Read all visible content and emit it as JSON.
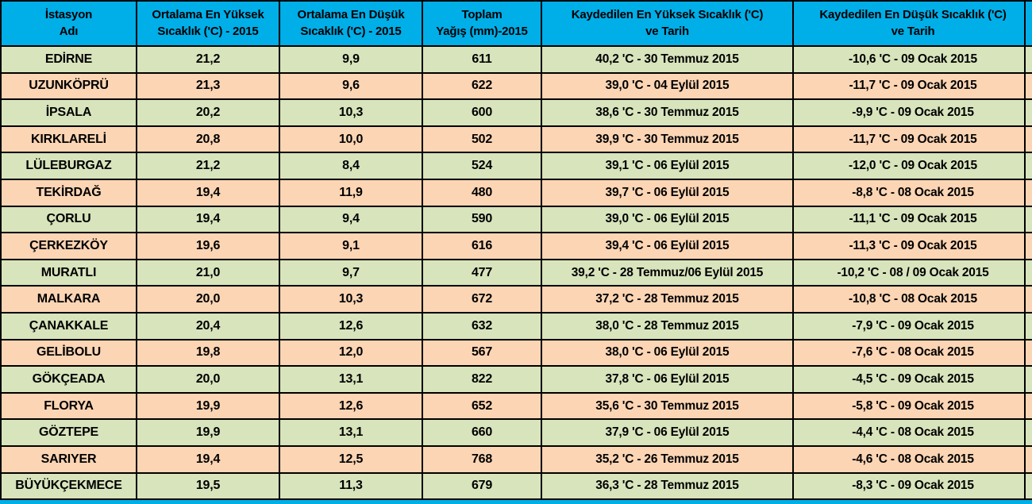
{
  "colors": {
    "header_bg": "#00AEE8",
    "row_green": "#D8E4BC",
    "row_orange": "#FCD5B4",
    "border": "#000000"
  },
  "table": {
    "columns": [
      {
        "line1": "İstasyon",
        "line2": "Adı"
      },
      {
        "line1": "Ortalama En Yüksek",
        "line2": "Sıcaklık ('C) - 2015"
      },
      {
        "line1": "Ortalama En Düşük",
        "line2": "Sıcaklık ('C) - 2015"
      },
      {
        "line1": "Toplam",
        "line2": "Yağış (mm)-2015"
      },
      {
        "line1": "Kaydedilen En Yüksek Sıcaklık ('C)",
        "line2": "ve Tarih"
      },
      {
        "line1": "Kaydedilen En Düşük Sıcaklık ('C)",
        "line2": "ve Tarih"
      }
    ],
    "rows": [
      {
        "station": "EDİRNE",
        "avg_max": "21,2",
        "avg_min": "9,9",
        "precip": "611",
        "rec_max": "40,2 'C - 30 Temmuz 2015",
        "rec_min": "-10,6 'C - 09 Ocak 2015"
      },
      {
        "station": "UZUNKÖPRÜ",
        "avg_max": "21,3",
        "avg_min": "9,6",
        "precip": "622",
        "rec_max": "39,0 'C - 04 Eylül 2015",
        "rec_min": "-11,7 'C - 09 Ocak 2015"
      },
      {
        "station": "İPSALA",
        "avg_max": "20,2",
        "avg_min": "10,3",
        "precip": "600",
        "rec_max": "38,6 'C - 30 Temmuz 2015",
        "rec_min": "-9,9 'C - 09 Ocak 2015"
      },
      {
        "station": "KIRKLARELİ",
        "avg_max": "20,8",
        "avg_min": "10,0",
        "precip": "502",
        "rec_max": "39,9 'C - 30 Temmuz 2015",
        "rec_min": "-11,7 'C - 09 Ocak 2015"
      },
      {
        "station": "LÜLEBURGAZ",
        "avg_max": "21,2",
        "avg_min": "8,4",
        "precip": "524",
        "rec_max": "39,1 'C - 06 Eylül 2015",
        "rec_min": "-12,0 'C - 09 Ocak 2015"
      },
      {
        "station": "TEKİRDAĞ",
        "avg_max": "19,4",
        "avg_min": "11,9",
        "precip": "480",
        "rec_max": "39,7 'C - 06 Eylül 2015",
        "rec_min": "-8,8 'C - 08 Ocak 2015"
      },
      {
        "station": "ÇORLU",
        "avg_max": "19,4",
        "avg_min": "9,4",
        "precip": "590",
        "rec_max": "39,0 'C - 06 Eylül 2015",
        "rec_min": "-11,1 'C - 09 Ocak 2015"
      },
      {
        "station": "ÇERKEZKÖY",
        "avg_max": "19,6",
        "avg_min": "9,1",
        "precip": "616",
        "rec_max": "39,4 'C - 06 Eylül 2015",
        "rec_min": "-11,3 'C - 09 Ocak 2015"
      },
      {
        "station": "MURATLI",
        "avg_max": "21,0",
        "avg_min": "9,7",
        "precip": "477",
        "rec_max": "39,2 'C - 28 Temmuz/06 Eylül 2015",
        "rec_min": "-10,2 'C - 08 / 09 Ocak 2015"
      },
      {
        "station": "MALKARA",
        "avg_max": "20,0",
        "avg_min": "10,3",
        "precip": "672",
        "rec_max": "37,2 'C - 28 Temmuz 2015",
        "rec_min": "-10,8 'C - 08 Ocak 2015"
      },
      {
        "station": "ÇANAKKALE",
        "avg_max": "20,4",
        "avg_min": "12,6",
        "precip": "632",
        "rec_max": "38,0 'C - 28 Temmuz 2015",
        "rec_min": "-7,9 'C - 09 Ocak 2015"
      },
      {
        "station": "GELİBOLU",
        "avg_max": "19,8",
        "avg_min": "12,0",
        "precip": "567",
        "rec_max": "38,0 'C - 06 Eylül 2015",
        "rec_min": "-7,6 'C - 08 Ocak 2015"
      },
      {
        "station": "GÖKÇEADA",
        "avg_max": "20,0",
        "avg_min": "13,1",
        "precip": "822",
        "rec_max": "37,8 'C - 06 Eylül 2015",
        "rec_min": "-4,5 'C - 09 Ocak 2015"
      },
      {
        "station": "FLORYA",
        "avg_max": "19,9",
        "avg_min": "12,6",
        "precip": "652",
        "rec_max": "35,6 'C - 30 Temmuz 2015",
        "rec_min": "-5,8 'C - 09 Ocak 2015"
      },
      {
        "station": "GÖZTEPE",
        "avg_max": "19,9",
        "avg_min": "13,1",
        "precip": "660",
        "rec_max": "37,9 'C - 06 Eylül 2015",
        "rec_min": "-4,4 'C - 08 Ocak 2015"
      },
      {
        "station": "SARIYER",
        "avg_max": "19,4",
        "avg_min": "12,5",
        "precip": "768",
        "rec_max": "35,2 'C - 26 Temmuz 2015",
        "rec_min": "-4,6 'C - 08 Ocak 2015"
      },
      {
        "station": "BÜYÜKÇEKMECE",
        "avg_max": "19,5",
        "avg_min": "11,3",
        "precip": "679",
        "rec_max": "36,3 'C - 28 Temmuz 2015",
        "rec_min": "-8,3 'C - 09 Ocak 2015"
      }
    ]
  }
}
